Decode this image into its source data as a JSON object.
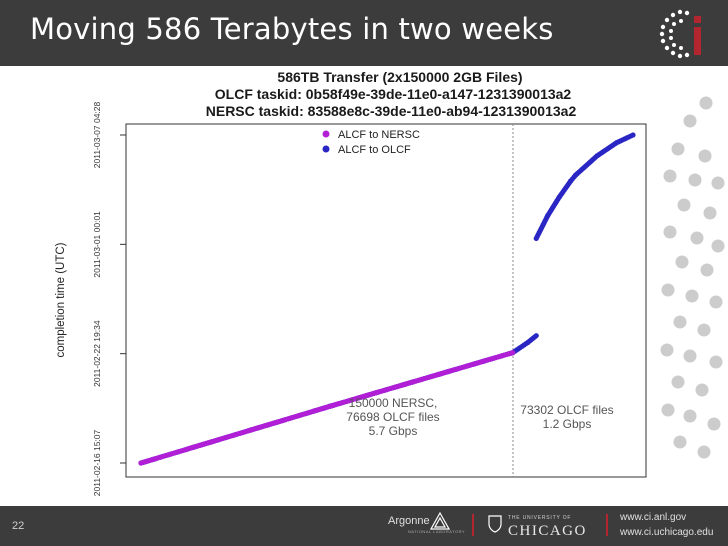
{
  "slide": {
    "title": "Moving 586 Terabytes in two weeks",
    "page_number": "22",
    "footer_org1": "Argonne",
    "footer_org1_sub": "NATIONAL LABORATORY",
    "footer_org2_top": "THE UNIVERSITY OF",
    "footer_org2": "CHICAGO",
    "url1": "www.ci.anl.gov",
    "url2": "www.ci.uchicago.edu",
    "colors": {
      "bar": "#3c3c3c",
      "accent": "#b4262f",
      "dots": "#cccccc"
    }
  },
  "chart_data": {
    "type": "scatter",
    "title_lines": [
      "586TB Transfer (2x150000 2GB Files)",
      "OLCF taskid: 0b58f49e-39de-11e0-a147-1231390013a2",
      "NERSC taskid: 83588e8c-39de-11e0-ab94-1231390013a2"
    ],
    "ylabel": "completion time (UTC)",
    "xlabel": "",
    "y_ticks": [
      "2011-02-16 15:07",
      "2011-02-22 19:34",
      "2011-03-01 00:01",
      "2011-03-07 04:28"
    ],
    "xlim": [
      0,
      300000
    ],
    "x_divider": 226698,
    "grid": false,
    "legend_position": "top-center",
    "series": [
      {
        "name": "ALCF to NERSC",
        "color": "#b01ed6",
        "points": [
          [
            0,
            "2011-02-16 15:07"
          ],
          [
            115000,
            "2011-02-19 20:00"
          ],
          [
            226698,
            "2011-02-22 21:00"
          ]
        ]
      },
      {
        "name": "ALCF to OLCF",
        "color": "#2a26c4",
        "points": [
          [
            0,
            "2011-02-16 15:07"
          ],
          [
            115000,
            "2011-02-19 20:00"
          ],
          [
            226698,
            "2011-02-22 21:00"
          ],
          [
            236000,
            "2011-02-23 11:00"
          ],
          [
            241000,
            "2011-02-23 20:00"
          ],
          [
            241000,
            "2011-03-01 08:00"
          ],
          [
            248000,
            "2011-03-02 15:00"
          ],
          [
            255000,
            "2011-03-03 16:00"
          ],
          [
            262000,
            "2011-03-04 14:00"
          ],
          [
            265000,
            "2011-03-04 22:00"
          ],
          [
            278000,
            "2011-03-06 00:00"
          ],
          [
            290000,
            "2011-03-06 18:00"
          ],
          [
            300000,
            "2011-03-07 04:28"
          ]
        ]
      }
    ],
    "annotations": [
      {
        "lines": [
          "150000 NERSC,",
          "76698 OLCF files",
          "5.7 Gbps"
        ]
      },
      {
        "lines": [
          "73302 OLCF files",
          "1.2 Gbps"
        ]
      }
    ]
  }
}
